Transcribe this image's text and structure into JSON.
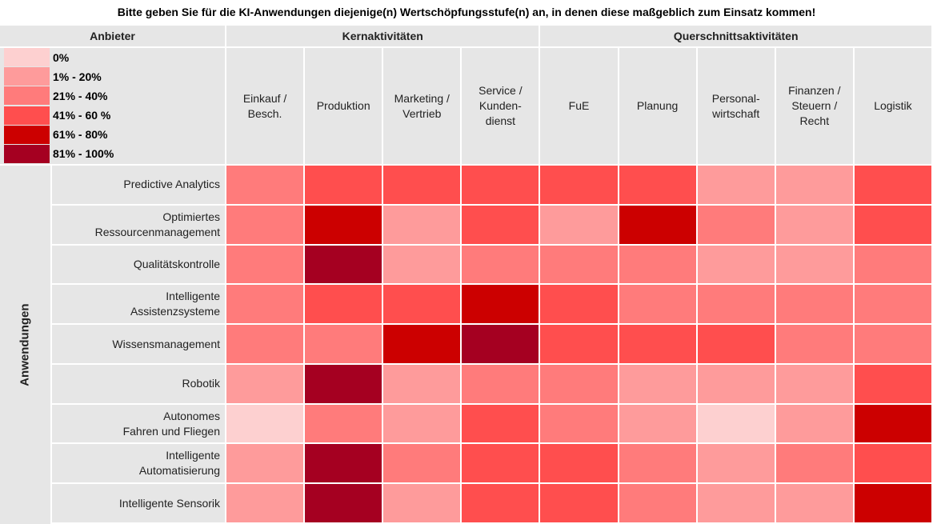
{
  "title": "Bitte geben Sie für die KI-Anwendungen diejenige(n) Wertschöpfungsstufe(n) an, in denen diese maßgeblich zum Einsatz kommen!",
  "header": {
    "provider": "Anbieter",
    "groups": [
      {
        "label": "Kernaktivitäten",
        "span": 4
      },
      {
        "label": "Querschnittsaktivitäten",
        "span": 5
      }
    ],
    "row_group": "Anwendungen"
  },
  "legend": [
    {
      "label": "0%",
      "color": "#fdd0d0"
    },
    {
      "label": "1% - 20%",
      "color": "#fe9b9b"
    },
    {
      "label": "21% - 40%",
      "color": "#ff7b7b"
    },
    {
      "label": "41% - 60 %",
      "color": "#ff4e4e"
    },
    {
      "label": "61% - 80%",
      "color": "#cc0000"
    },
    {
      "label": "81% - 100%",
      "color": "#a50021"
    }
  ],
  "columns": [
    "Einkauf /\nBesch.",
    "Produktion",
    "Marketing /\nVertrieb",
    "Service /\nKunden-\ndienst",
    "FuE",
    "Planung",
    "Personal-\nwirtschaft",
    "Finanzen /\nSteuern /\nRecht",
    "Logistik"
  ],
  "rows": [
    {
      "label": "Predictive Analytics",
      "cells": [
        2,
        3,
        3,
        3,
        3,
        3,
        1,
        1,
        3
      ]
    },
    {
      "label": "Optimiertes\nRessourcenmanagement",
      "cells": [
        2,
        4,
        1,
        3,
        1,
        4,
        2,
        1,
        3
      ]
    },
    {
      "label": "Qualitätskontrolle",
      "cells": [
        2,
        5,
        1,
        2,
        2,
        2,
        1,
        1,
        2
      ]
    },
    {
      "label": "Intelligente\nAssistenzsysteme",
      "cells": [
        2,
        3,
        3,
        4,
        3,
        2,
        2,
        2,
        2
      ]
    },
    {
      "label": "Wissensmanagement",
      "cells": [
        2,
        2,
        4,
        5,
        3,
        3,
        3,
        2,
        2
      ]
    },
    {
      "label": "Robotik",
      "cells": [
        1,
        5,
        1,
        2,
        2,
        1,
        1,
        1,
        3
      ]
    },
    {
      "label": "Autonomes\nFahren und Fliegen",
      "cells": [
        0,
        2,
        1,
        3,
        2,
        1,
        0,
        1,
        4
      ]
    },
    {
      "label": "Intelligente\nAutomatisierung",
      "cells": [
        1,
        5,
        2,
        3,
        3,
        2,
        1,
        2,
        3
      ]
    },
    {
      "label": "Intelligente Sensorik",
      "cells": [
        1,
        5,
        1,
        3,
        3,
        2,
        1,
        1,
        4
      ]
    }
  ]
}
